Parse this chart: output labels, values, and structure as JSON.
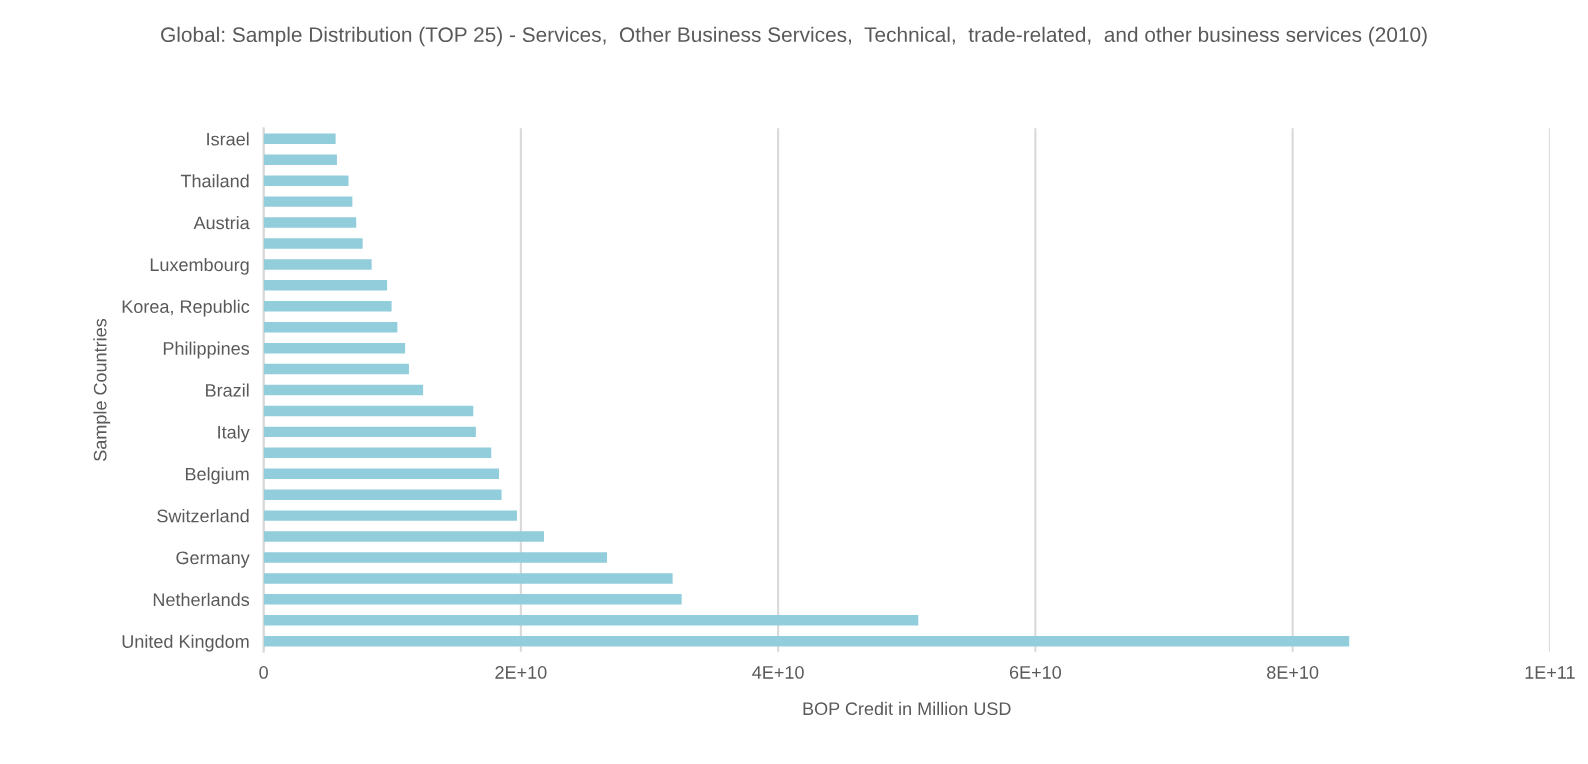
{
  "chart_data": {
    "type": "bar",
    "orientation": "horizontal",
    "title": "Global: Sample Distribution (TOP 25) - Services,  Other Business Services,  Technical,  trade-related,  and other business services (2010)",
    "xlabel": "BOP Credit in Million USD",
    "ylabel": "Sample Countries",
    "categories": [
      "Israel",
      null,
      "Thailand",
      null,
      "Austria",
      null,
      "Luxembourg",
      null,
      "Korea, Republic",
      null,
      "Philippines",
      null,
      "Brazil",
      null,
      "Italy",
      null,
      "Belgium",
      null,
      "Switzerland",
      null,
      "Germany",
      null,
      "Netherlands",
      null,
      "United Kingdom"
    ],
    "values": [
      5600000000.0,
      5700000000.0,
      6600000000.0,
      6900000000.0,
      7200000000.0,
      7700000000.0,
      8400000000.0,
      9600000000.0,
      9950000000.0,
      10400000000.0,
      11000000000.0,
      11300000000.0,
      12400000000.0,
      16300000000.0,
      16500000000.0,
      17700000000.0,
      18300000000.0,
      18500000000.0,
      19700000000.0,
      21800000000.0,
      26700000000.0,
      31800000000.0,
      32500000000.0,
      50900000000.0,
      84400000000.0
    ],
    "color": "#92cddc",
    "xlim": [
      0,
      100000000000.0
    ],
    "xticks": [
      0,
      {
        "value": 20000000000.0,
        "label": "2E+10"
      },
      {
        "value": 40000000000.0,
        "label": "4E+10"
      },
      {
        "value": 60000000000.0,
        "label": "6E+10"
      },
      {
        "value": 80000000000.0,
        "label": "8E+10"
      },
      {
        "value": 100000000000.0,
        "label": "1E+11"
      }
    ],
    "grid": "x"
  }
}
